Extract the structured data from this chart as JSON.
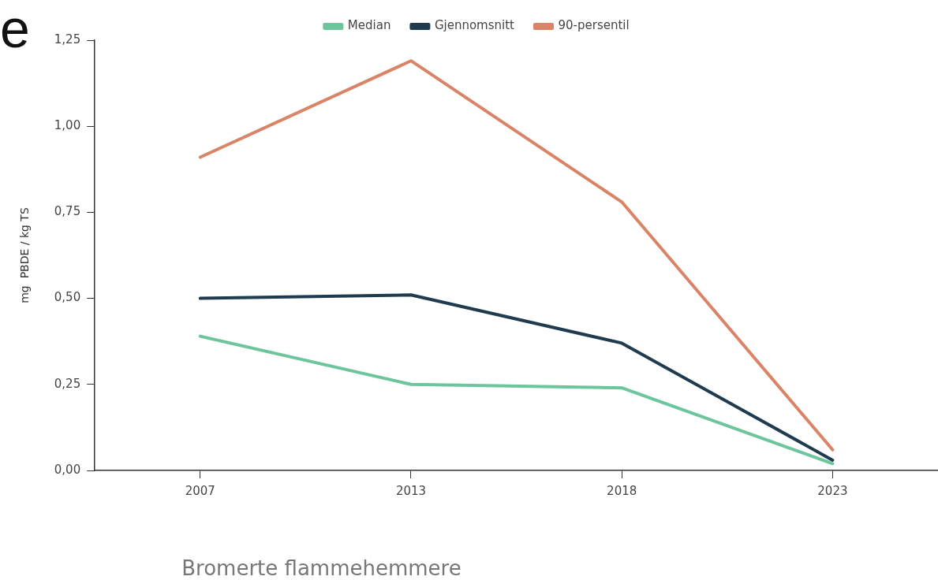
{
  "chart_data": {
    "type": "line",
    "title": "Bromerte flammehemmere",
    "ylabel": "mg  PBDE / kg TS",
    "categories": [
      "2007",
      "2013",
      "2018",
      "2023"
    ],
    "series": [
      {
        "name": "Median",
        "color": "#6cc59c",
        "values": [
          0.39,
          0.25,
          0.24,
          0.02
        ]
      },
      {
        "name": "Gjennomsnitt",
        "color": "#1f3b4f",
        "values": [
          0.5,
          0.51,
          0.37,
          0.03
        ]
      },
      {
        "name": "90-persentil",
        "color": "#d98466",
        "values": [
          0.91,
          1.19,
          0.78,
          0.06
        ]
      }
    ],
    "ylim": [
      0,
      1.25
    ],
    "yticks": [
      {
        "value": 0,
        "label": "0,00"
      },
      {
        "value": 0.25,
        "label": "0,25"
      },
      {
        "value": 0.5,
        "label": "0,50"
      },
      {
        "value": 0.75,
        "label": "0,75"
      },
      {
        "value": 1,
        "label": "1,00"
      },
      {
        "value": 1.25,
        "label": "1,25"
      }
    ],
    "annotations": [
      "e"
    ],
    "grid": false,
    "legend": "top",
    "marker": "none",
    "line_style": "solid"
  }
}
